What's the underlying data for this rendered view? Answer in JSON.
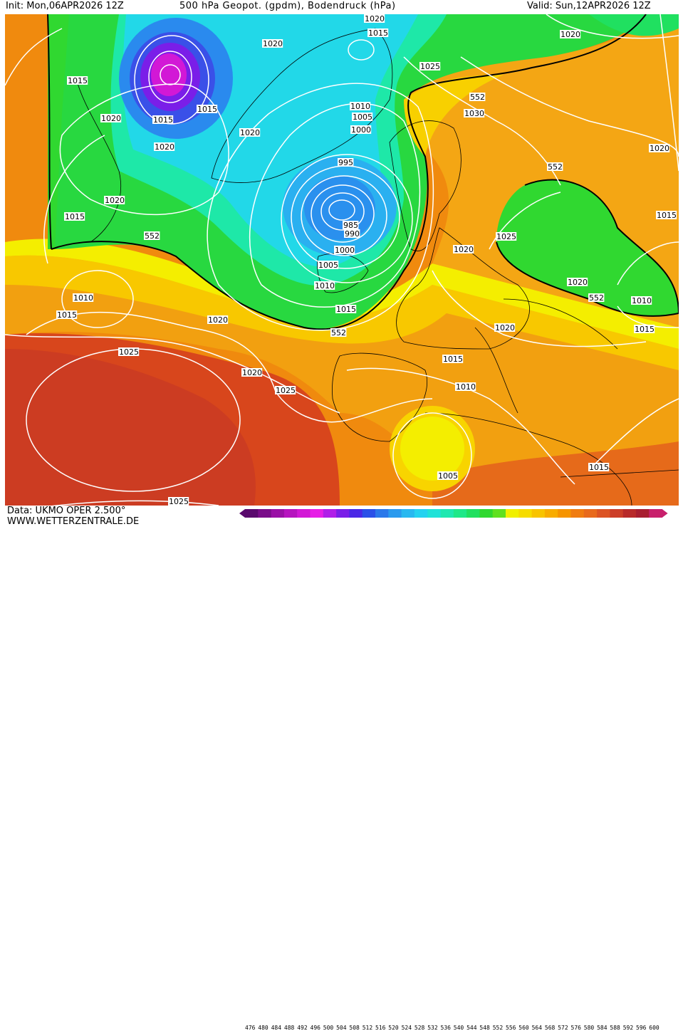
{
  "header": {
    "init": "Init: Mon,06APR2026 12Z",
    "title": "500 hPa Geopot. (gpdm), Bodendruck (hPa)",
    "valid": "Valid: Sun,12APR2026 12Z"
  },
  "footer": {
    "source": "Data: UKMO OPER 2.500°",
    "website": "WWW.WETTERZENTRALE.DE"
  },
  "colorbar": {
    "ticks": [
      "476",
      "480",
      "484",
      "488",
      "492",
      "496",
      "500",
      "504",
      "508",
      "512",
      "516",
      "520",
      "524",
      "528",
      "532",
      "536",
      "540",
      "544",
      "548",
      "552",
      "556",
      "560",
      "564",
      "568",
      "572",
      "576",
      "580",
      "584",
      "588",
      "592",
      "596",
      "600"
    ],
    "colors": [
      "#5a0a6e",
      "#7a0d8a",
      "#9a10a6",
      "#b614bf",
      "#d218d6",
      "#e61ee6",
      "#b01ee8",
      "#7a1ee8",
      "#4a28e6",
      "#2a50e8",
      "#2a78ea",
      "#2a9aee",
      "#28b8f0",
      "#24d2f0",
      "#20e2d8",
      "#1ee8b0",
      "#1ee888",
      "#20e060",
      "#30d830",
      "#60e020",
      "#f0f000",
      "#f6dc00",
      "#f8c400",
      "#f8ac00",
      "#f69400",
      "#f07c10",
      "#e86a1c",
      "#dc5424",
      "#cc3e28",
      "#b82a2a",
      "#a81e30",
      "#c8206c"
    ]
  },
  "map": {
    "line_552": "552",
    "isobar_labels": [
      "1015",
      "1020",
      "1015",
      "1020",
      "1020",
      "1015",
      "1020",
      "1015",
      "1020",
      "1025",
      "1030",
      "1020",
      "1020",
      "1015",
      "1010",
      "1005",
      "1000",
      "995",
      "985",
      "990",
      "1000",
      "1005",
      "1010",
      "1015",
      "1020",
      "1020",
      "1015",
      "1010",
      "1015",
      "1020",
      "1025",
      "1025",
      "1020",
      "1025",
      "1015",
      "1010",
      "1005",
      "1015",
      "1020",
      "1020",
      "1025",
      "1020",
      "1015",
      "1010",
      "1015",
      "1020",
      "552",
      "552",
      "552",
      "552",
      "552"
    ]
  }
}
